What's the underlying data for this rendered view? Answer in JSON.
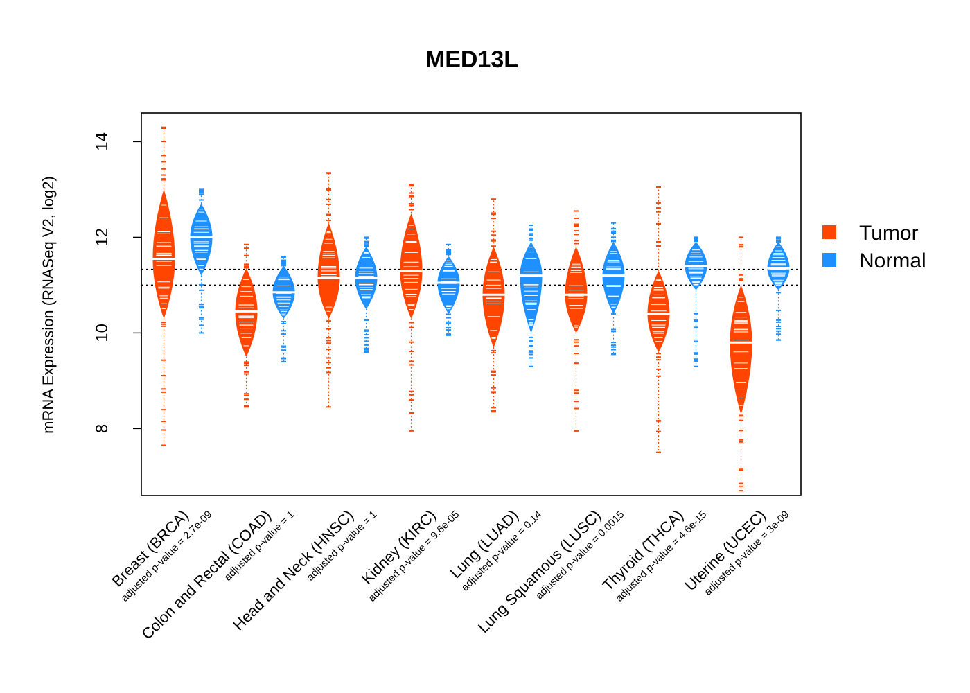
{
  "chart_data": {
    "type": "violin",
    "title": "MED13L",
    "xlabel": "",
    "ylabel": "mRNA Expression (RNASeq V2, log2)",
    "ylim": [
      6.6,
      14.6
    ],
    "yticks": [
      8,
      10,
      12,
      14
    ],
    "reference_lines": [
      11.0,
      11.33
    ],
    "legend": {
      "position": "right",
      "entries": [
        {
          "label": "Tumor",
          "color": "#FF4500"
        },
        {
          "label": "Normal",
          "color": "#1E90FF"
        }
      ]
    },
    "colors": {
      "tumor": "#FF4500",
      "normal": "#1E90FF"
    },
    "categories": [
      {
        "label": "Breast (BRCA)",
        "pvalue": "adjusted p-value = 2.7e-09",
        "tumor": {
          "median": 11.55,
          "min": 7.65,
          "max": 14.3,
          "core": [
            10.3,
            13.0
          ]
        },
        "normal": {
          "median": 12.0,
          "min": 10.0,
          "max": 13.0,
          "core": [
            11.2,
            12.7
          ]
        }
      },
      {
        "label": "Colon and Rectal (COAD)",
        "pvalue": "adjusted p-value = 1",
        "tumor": {
          "median": 10.45,
          "min": 8.45,
          "max": 11.85,
          "core": [
            9.5,
            11.35
          ]
        },
        "normal": {
          "median": 10.85,
          "min": 9.4,
          "max": 11.6,
          "core": [
            10.3,
            11.4
          ]
        }
      },
      {
        "label": "Head and Neck (HNSC)",
        "pvalue": "adjusted p-value = 1",
        "tumor": {
          "median": 11.15,
          "min": 8.45,
          "max": 13.35,
          "core": [
            10.3,
            12.3
          ]
        },
        "normal": {
          "median": 11.15,
          "min": 9.6,
          "max": 12.0,
          "core": [
            10.5,
            11.8
          ]
        }
      },
      {
        "label": "Kidney (KIRC)",
        "pvalue": "adjusted p-value = 9.6e-05",
        "tumor": {
          "median": 11.3,
          "min": 7.95,
          "max": 13.1,
          "core": [
            10.3,
            12.5
          ]
        },
        "normal": {
          "median": 11.05,
          "min": 9.95,
          "max": 11.85,
          "core": [
            10.4,
            11.6
          ]
        }
      },
      {
        "label": "Lung (LUAD)",
        "pvalue": "adjusted p-value = 0.14",
        "tumor": {
          "median": 10.8,
          "min": 8.35,
          "max": 12.8,
          "core": [
            9.7,
            11.8
          ]
        },
        "normal": {
          "median": 11.2,
          "min": 9.3,
          "max": 12.25,
          "core": [
            10.0,
            11.9
          ]
        }
      },
      {
        "label": "Lung Squamous (LUSC)",
        "pvalue": "adjusted p-value = 0.0015",
        "tumor": {
          "median": 10.8,
          "min": 7.95,
          "max": 12.55,
          "core": [
            10.0,
            11.8
          ]
        },
        "normal": {
          "median": 11.2,
          "min": 9.55,
          "max": 12.3,
          "core": [
            10.4,
            11.9
          ]
        }
      },
      {
        "label": "Thyroid (THCA)",
        "pvalue": "adjusted p-value = 4.6e-15",
        "tumor": {
          "median": 10.4,
          "min": 7.5,
          "max": 13.05,
          "core": [
            9.6,
            11.3
          ]
        },
        "normal": {
          "median": 11.4,
          "min": 9.3,
          "max": 12.0,
          "core": [
            10.9,
            11.9
          ]
        }
      },
      {
        "label": "Uterine (UCEC)",
        "pvalue": "adjusted p-value = 3e-09",
        "tumor": {
          "median": 9.8,
          "min": 6.7,
          "max": 12.0,
          "core": [
            8.3,
            11.0
          ]
        },
        "normal": {
          "median": 11.35,
          "min": 9.85,
          "max": 12.0,
          "core": [
            10.9,
            11.9
          ]
        }
      }
    ]
  }
}
